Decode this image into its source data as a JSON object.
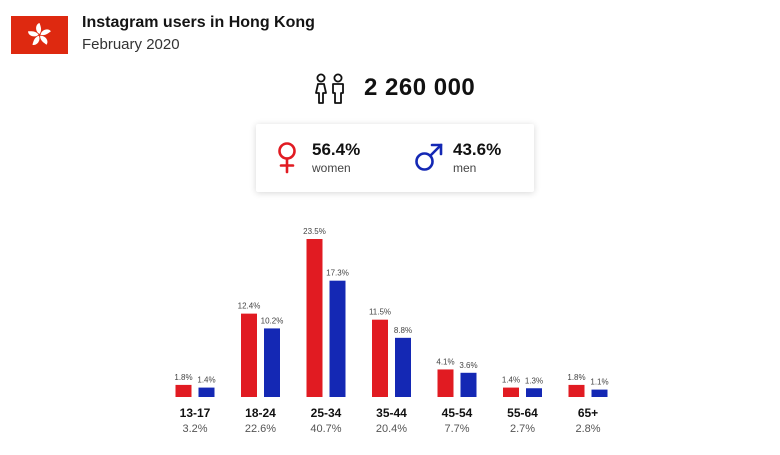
{
  "header": {
    "title": "Instagram users in Hong Kong",
    "subtitle": "February 2020",
    "flag_color": "#de2910"
  },
  "summary": {
    "total": "2 260 000",
    "icon": "people-icon"
  },
  "gender": {
    "women": {
      "pct": "56.4%",
      "label": "women",
      "icon": "female-icon",
      "color": "#e11b22"
    },
    "men": {
      "pct": "43.6%",
      "label": "men",
      "icon": "male-icon",
      "color": "#1428b4"
    }
  },
  "chart_data": {
    "type": "bar",
    "categories": [
      "13-17",
      "18-24",
      "25-34",
      "35-44",
      "45-54",
      "55-64",
      "65+"
    ],
    "category_shares": [
      "3.2%",
      "22.6%",
      "40.7%",
      "20.4%",
      "7.7%",
      "2.7%",
      "2.8%"
    ],
    "series": [
      {
        "color": "#e11b22",
        "values": [
          1.8,
          12.4,
          23.5,
          11.5,
          4.1,
          1.4,
          1.8
        ],
        "labels": [
          "1.8%",
          "12.4%",
          "23.5%",
          "11.5%",
          "4.1%",
          "1.4%",
          "1.8%"
        ]
      },
      {
        "color": "#1428b4",
        "values": [
          1.4,
          10.2,
          17.3,
          8.8,
          3.6,
          1.3,
          1.1
        ],
        "labels": [
          "1.4%",
          "10.2%",
          "17.3%",
          "8.8%",
          "3.6%",
          "1.3%",
          "1.1%"
        ]
      }
    ],
    "ylim": [
      0,
      23.5
    ],
    "grid": false
  }
}
